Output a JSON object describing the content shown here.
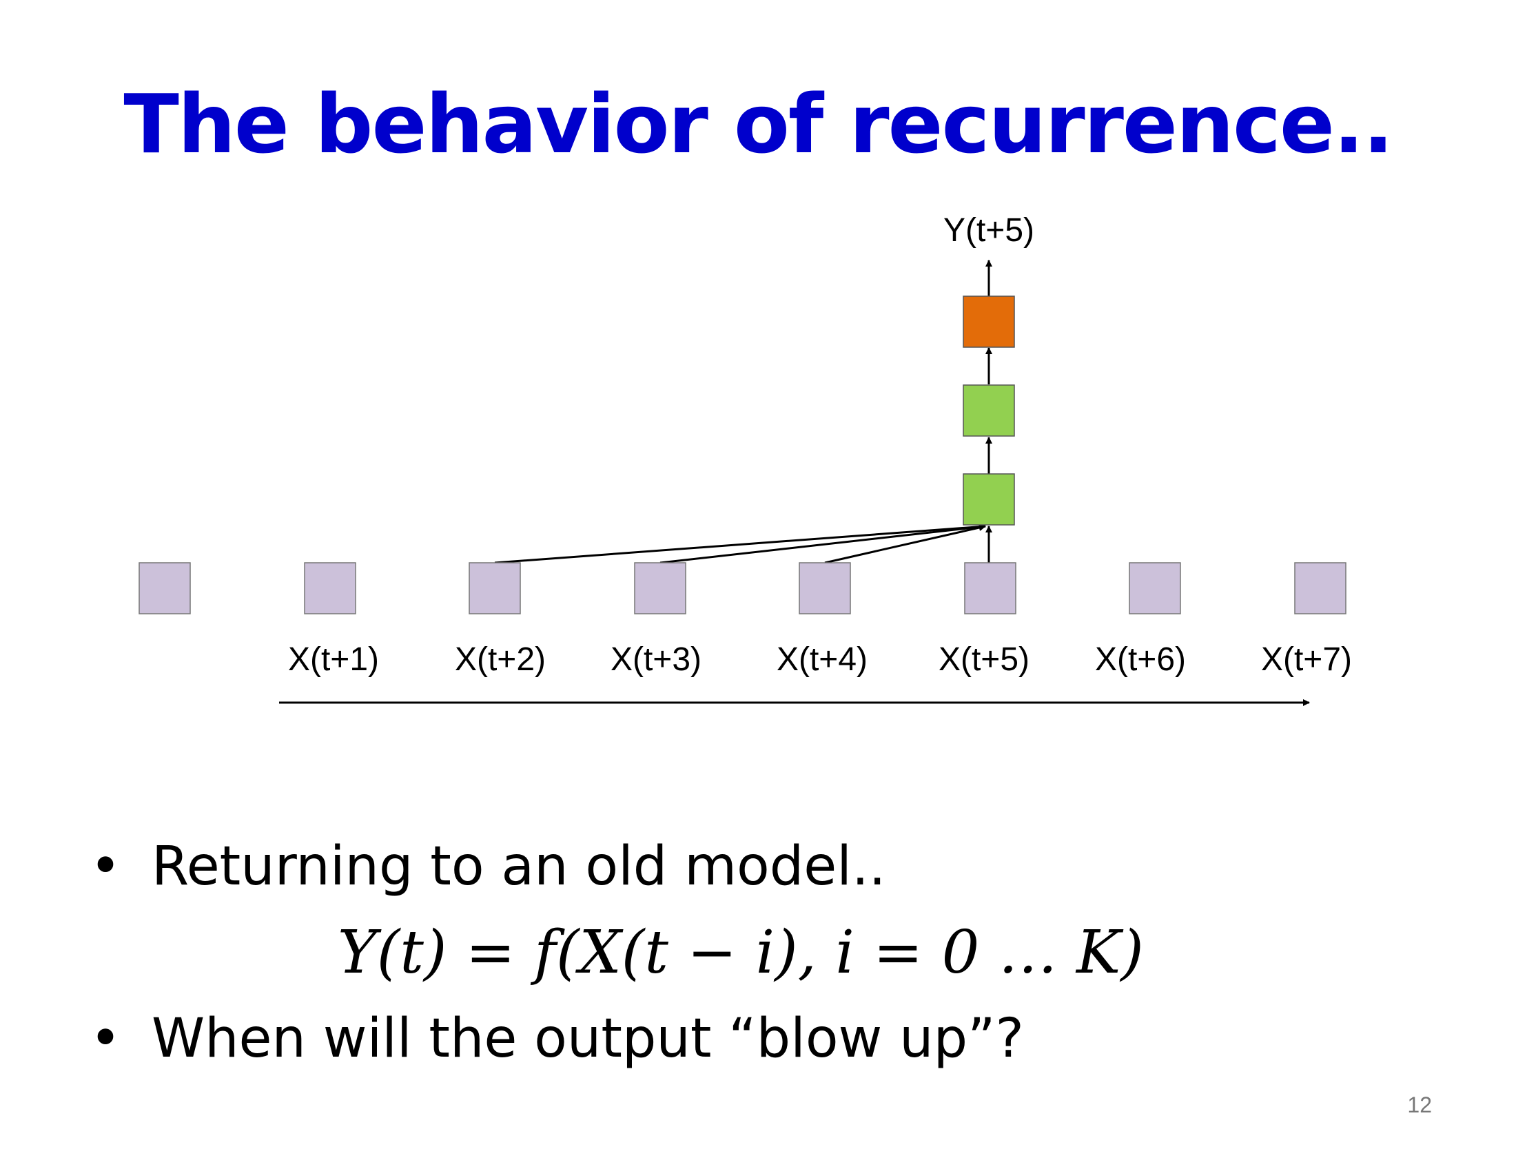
{
  "slide": {
    "title": "The behavior of recurrence..",
    "page_number": "12"
  },
  "diagram": {
    "output_label": "Y(t+5)",
    "input_labels": [
      "X(t+1)",
      "X(t+2)",
      "X(t+3)",
      "X(t+4)",
      "X(t+5)",
      "X(t+6)",
      "X(t+7)"
    ],
    "colors": {
      "input_box": "#ccc1da",
      "hidden_box": "#92d050",
      "output_box": "#e36c09"
    }
  },
  "bullets": [
    "Returning to an old model..",
    "When will the output “blow up”?"
  ],
  "equation": "Y(t) = f(X(t − i), i = 0 … K)"
}
